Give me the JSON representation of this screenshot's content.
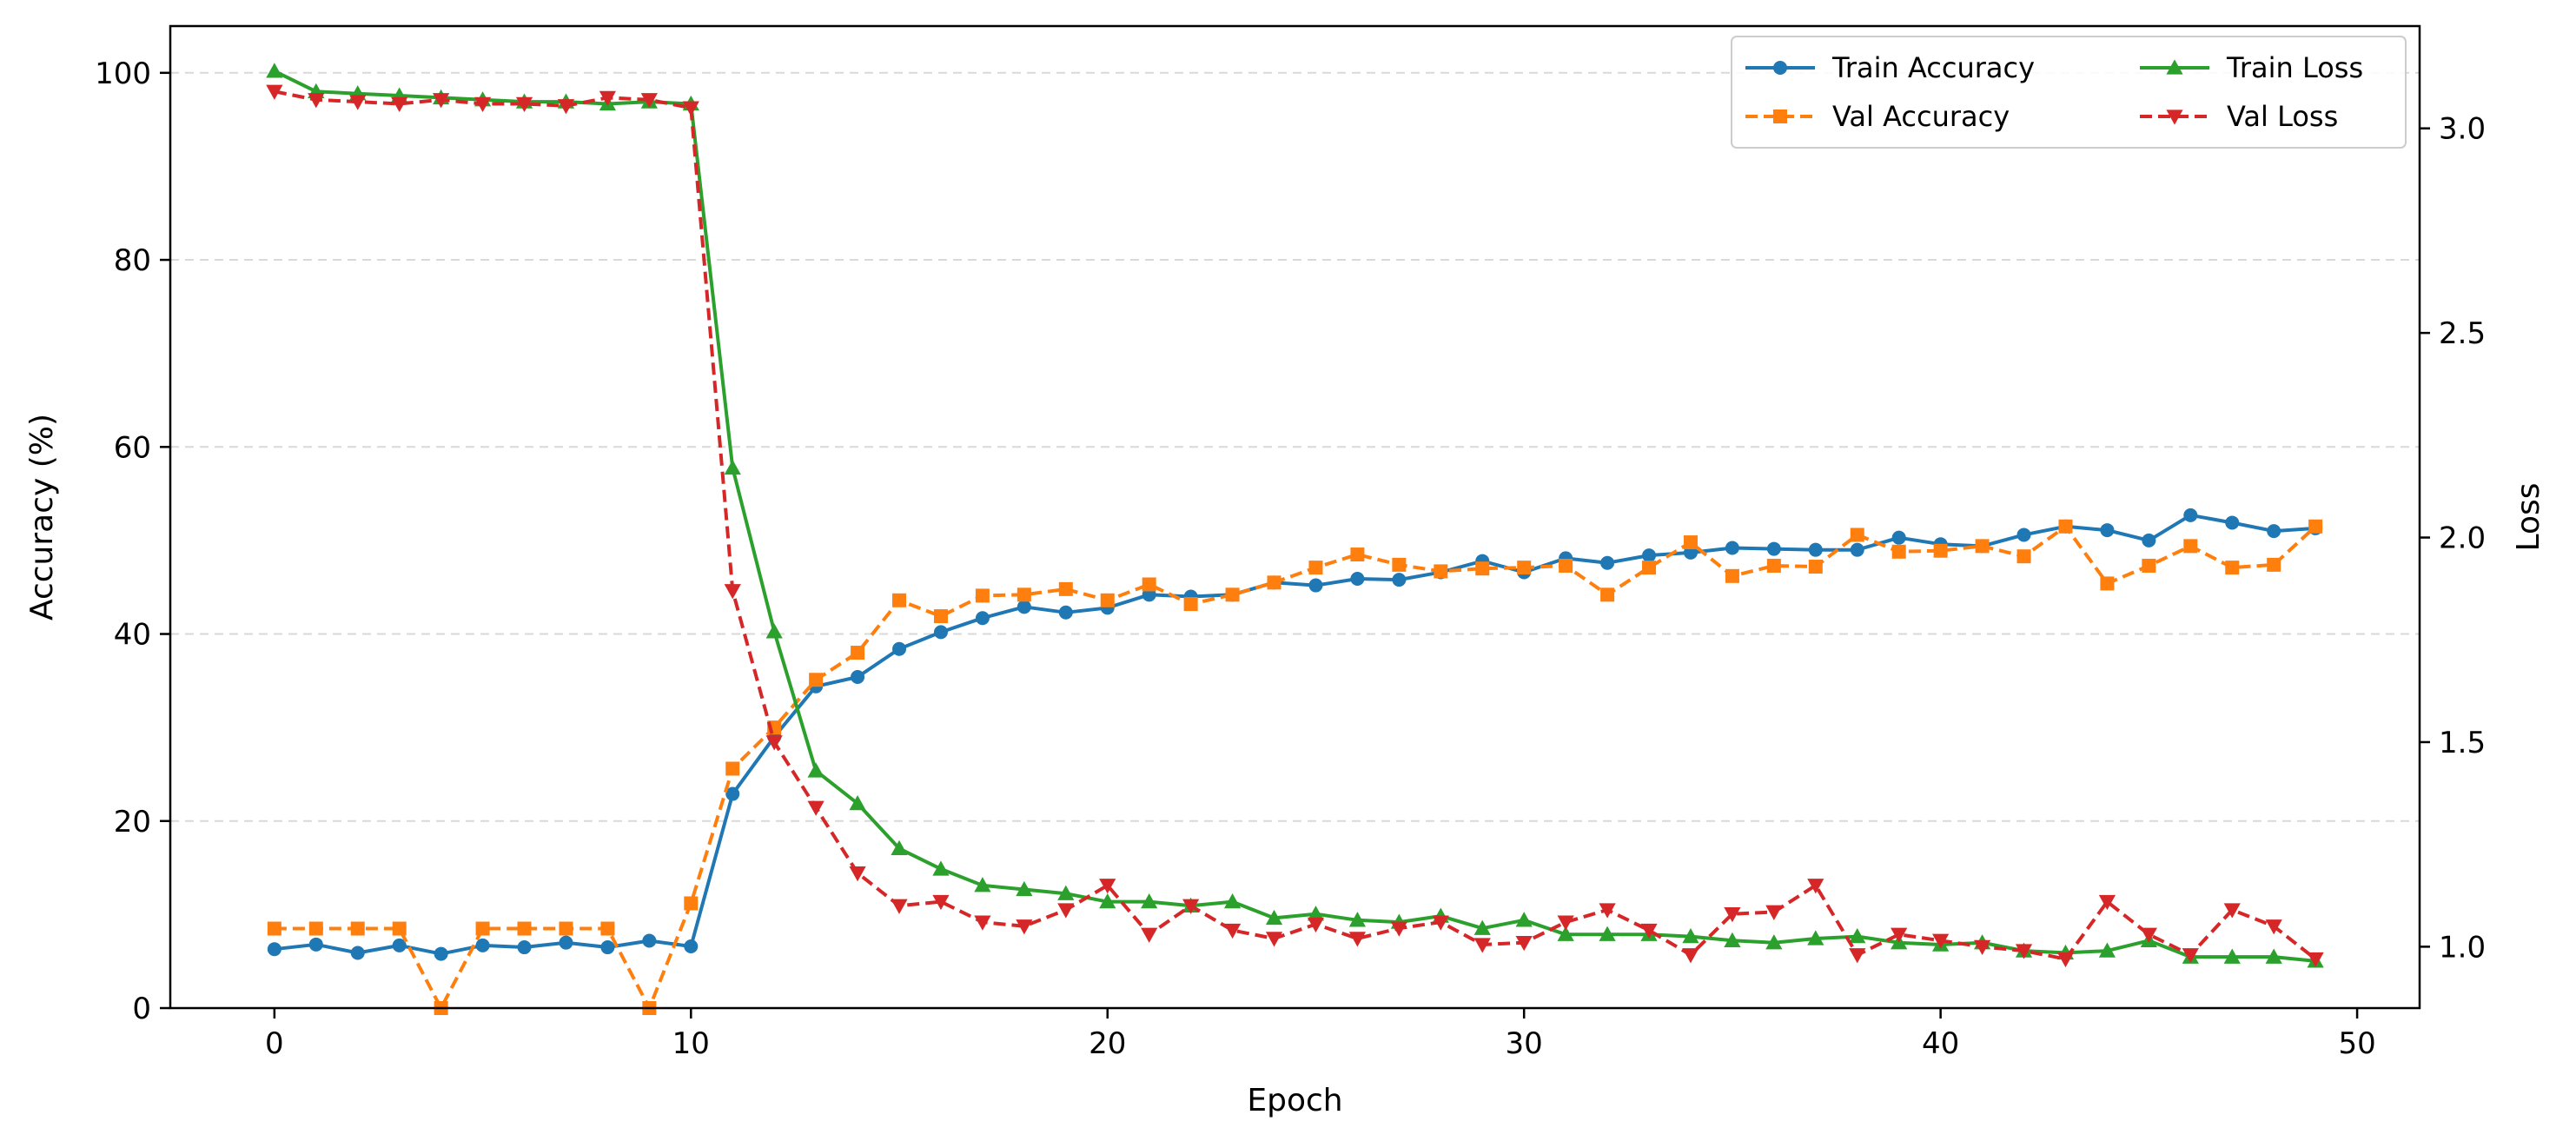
{
  "chart_data": {
    "type": "line",
    "title": "",
    "xlabel": "Epoch",
    "ylabel": "Accuracy (%)",
    "y2label": "Loss",
    "xlim": [
      -2.5,
      51.5
    ],
    "ylim": [
      0,
      105
    ],
    "y2lim": [
      0.85,
      3.25
    ],
    "x_ticks": [
      0,
      10,
      20,
      30,
      40,
      50
    ],
    "y_ticks": [
      0,
      20,
      40,
      60,
      80,
      100
    ],
    "y2_ticks": [
      1.0,
      1.5,
      2.0,
      2.5,
      3.0
    ],
    "y2_tick_labels": [
      "1.0",
      "1.5",
      "2.0",
      "2.5",
      "3.0"
    ],
    "grid": "horizontal dashed (left axis)",
    "legend_position": "top-right",
    "x": [
      0,
      1,
      2,
      3,
      4,
      5,
      6,
      7,
      8,
      9,
      10,
      11,
      12,
      13,
      14,
      15,
      16,
      17,
      18,
      19,
      20,
      21,
      22,
      23,
      24,
      25,
      26,
      27,
      28,
      29,
      30,
      31,
      32,
      33,
      34,
      35,
      36,
      37,
      38,
      39,
      40,
      41,
      42,
      43,
      44,
      45,
      46,
      47,
      48,
      49
    ],
    "series": [
      {
        "name": "Train Accuracy",
        "axis": "left",
        "color": "#1f77b4",
        "linestyle": "solid",
        "marker": "circle",
        "values": [
          6.3,
          6.8,
          5.9,
          6.7,
          5.8,
          6.7,
          6.5,
          7.0,
          6.5,
          7.2,
          6.6,
          22.9,
          29.0,
          34.4,
          35.4,
          38.4,
          40.2,
          41.7,
          42.9,
          42.3,
          42.8,
          44.2,
          44.0,
          44.2,
          45.5,
          45.2,
          45.9,
          45.8,
          46.6,
          47.8,
          46.6,
          48.1,
          47.6,
          48.4,
          48.7,
          49.2,
          49.1,
          49.0,
          49.0,
          50.3,
          49.6,
          49.4,
          50.6,
          51.5,
          51.1,
          50.0,
          52.7,
          51.9,
          51.0,
          51.3
        ]
      },
      {
        "name": "Val Accuracy",
        "axis": "left",
        "color": "#ff7f0e",
        "linestyle": "dashed",
        "marker": "square",
        "values": [
          8.5,
          8.5,
          8.5,
          8.5,
          0.0,
          8.5,
          8.5,
          8.5,
          8.5,
          0.0,
          11.2,
          25.6,
          30.0,
          35.1,
          38.0,
          43.6,
          41.9,
          44.1,
          44.2,
          44.8,
          43.6,
          45.3,
          43.2,
          44.2,
          45.5,
          47.1,
          48.5,
          47.4,
          46.7,
          47.0,
          47.1,
          47.3,
          44.2,
          47.1,
          49.8,
          46.2,
          47.3,
          47.2,
          50.6,
          48.8,
          48.9,
          49.4,
          48.3,
          51.5,
          45.4,
          47.3,
          49.4,
          47.1,
          47.4,
          51.5
        ]
      },
      {
        "name": "Train Loss",
        "axis": "right",
        "color": "#2ca02c",
        "linestyle": "solid",
        "marker": "triangle-up",
        "values": [
          3.14,
          3.09,
          3.085,
          3.08,
          3.075,
          3.07,
          3.065,
          3.065,
          3.06,
          3.065,
          3.06,
          2.17,
          1.77,
          1.43,
          1.35,
          1.24,
          1.19,
          1.15,
          1.14,
          1.13,
          1.11,
          1.11,
          1.1,
          1.11,
          1.07,
          1.08,
          1.065,
          1.06,
          1.075,
          1.045,
          1.065,
          1.03,
          1.03,
          1.03,
          1.025,
          1.015,
          1.01,
          1.02,
          1.025,
          1.01,
          1.005,
          1.01,
          0.99,
          0.985,
          0.99,
          1.015,
          0.975,
          0.975,
          0.975,
          0.965
        ]
      },
      {
        "name": "Val Loss",
        "axis": "right",
        "color": "#d62728",
        "linestyle": "dashed",
        "marker": "triangle-down",
        "values": [
          3.09,
          3.07,
          3.065,
          3.06,
          3.07,
          3.06,
          3.06,
          3.055,
          3.075,
          3.07,
          3.05,
          1.87,
          1.5,
          1.34,
          1.18,
          1.1,
          1.11,
          1.06,
          1.05,
          1.09,
          1.15,
          1.03,
          1.1,
          1.04,
          1.02,
          1.055,
          1.02,
          1.045,
          1.06,
          1.005,
          1.01,
          1.06,
          1.09,
          1.04,
          0.98,
          1.08,
          1.085,
          1.15,
          0.98,
          1.03,
          1.015,
          1.0,
          0.99,
          0.97,
          1.11,
          1.03,
          0.98,
          1.09,
          1.05,
          0.97
        ]
      }
    ]
  }
}
